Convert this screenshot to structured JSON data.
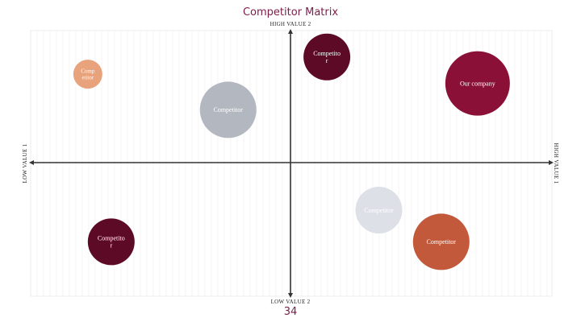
{
  "slide": {
    "title": "Competitor Matrix",
    "page_number": "34"
  },
  "axes": {
    "top_label": "HIGH VALUE 2",
    "bottom_label": "LOW VALUE 2",
    "left_label": "LOW VALUE 1",
    "right_label": "HIGH VALUE 1"
  },
  "colors": {
    "title": "#7b1c4a",
    "axis": "#333333",
    "grid": "#ececec"
  },
  "chart_data": {
    "type": "scatter",
    "x_label": "VALUE 1",
    "y_label": "VALUE 2",
    "xlim": [
      -1,
      1
    ],
    "ylim": [
      -1,
      1
    ],
    "grid": true,
    "points": [
      {
        "label": "Comp etitor",
        "x": -0.78,
        "y": 0.67,
        "size": 0.18,
        "color": "#e8a27c",
        "text_color": "#ffffff"
      },
      {
        "label": "Competito r",
        "x": 0.14,
        "y": 0.8,
        "size": 0.29,
        "color": "#5c0a26",
        "text_color": "#ffffff"
      },
      {
        "label": "Our company",
        "x": 0.72,
        "y": 0.6,
        "size": 0.4,
        "color": "#8b1038",
        "text_color": "#ffffff"
      },
      {
        "label": "Competitor",
        "x": -0.24,
        "y": 0.4,
        "size": 0.35,
        "color": "#b3b7bf",
        "text_color": "#ffffff"
      },
      {
        "label": "Competitor",
        "x": 0.34,
        "y": -0.36,
        "size": 0.29,
        "color": "#dde0e6",
        "text_color": "#ffffff"
      },
      {
        "label": "Competitor",
        "x": 0.58,
        "y": -0.6,
        "size": 0.35,
        "color": "#c2593a",
        "text_color": "#ffffff"
      },
      {
        "label": "Competito r",
        "x": -0.69,
        "y": -0.6,
        "size": 0.29,
        "color": "#5c0a26",
        "text_color": "#ffffff"
      }
    ]
  }
}
